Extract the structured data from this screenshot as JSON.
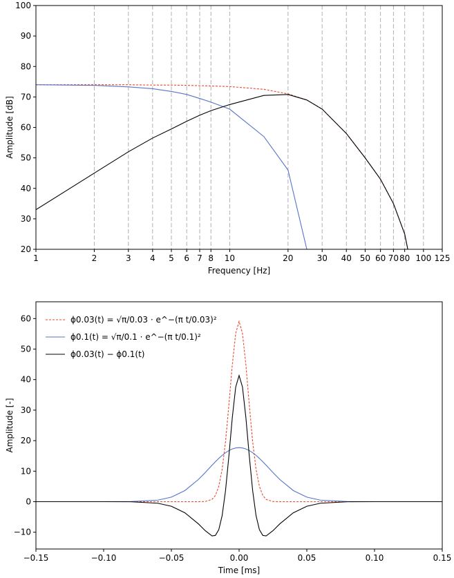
{
  "chart_data": [
    {
      "type": "line",
      "xscale": "log",
      "grid": "x",
      "xlabel": "Frequency [Hz]",
      "ylabel": "Amplitude [dB]",
      "xlim": [
        1,
        125
      ],
      "ylim": [
        20,
        100
      ],
      "xticks": [
        1,
        2,
        3,
        4,
        5,
        6,
        7,
        8,
        10,
        20,
        30,
        40,
        50,
        60,
        70,
        80,
        100,
        125
      ],
      "yticks": [
        20,
        30,
        40,
        50,
        60,
        70,
        80,
        90,
        100
      ],
      "x": [
        1,
        2,
        3,
        4,
        5,
        6,
        7,
        8,
        10,
        15,
        20,
        25,
        30,
        40,
        50,
        60,
        70,
        80,
        83
      ],
      "series": [
        {
          "color": "#e8492a",
          "linestyle": "dashed",
          "values": [
            74,
            74,
            74,
            73.9,
            73.9,
            73.8,
            73.7,
            73.6,
            73.4,
            72.5,
            71,
            69,
            66,
            58,
            50,
            43,
            35,
            25,
            20
          ]
        },
        {
          "color": "#5573c8",
          "linestyle": "solid",
          "values": [
            74,
            73.8,
            73.3,
            72.7,
            71.8,
            70.8,
            69.5,
            68.3,
            66,
            57,
            46,
            20,
            null,
            null,
            null,
            null,
            null,
            null,
            null
          ]
        },
        {
          "color": "#000000",
          "linestyle": "solid",
          "values": [
            33,
            45,
            52,
            56.5,
            59.5,
            62,
            64,
            65.5,
            67.5,
            70.5,
            70.8,
            69,
            66,
            58,
            50,
            43,
            35,
            25,
            20
          ]
        }
      ]
    },
    {
      "type": "line",
      "legend": "upper left",
      "xlabel": "Time [ms]",
      "ylabel": "Amplitude [-]",
      "xlim": [
        -0.15,
        0.15
      ],
      "ylim": [
        -15.5,
        65.5
      ],
      "xticks": [
        {
          "value": -0.15,
          "label": "−0.15"
        },
        {
          "value": -0.1,
          "label": "−0.10"
        },
        {
          "value": -0.05,
          "label": "−0.05"
        },
        {
          "value": 0,
          "label": "0.00"
        },
        {
          "value": 0.05,
          "label": "0.05"
        },
        {
          "value": 0.1,
          "label": "0.10"
        },
        {
          "value": 0.15,
          "label": "0.15"
        }
      ],
      "yticks": [
        {
          "value": -10,
          "label": "−10"
        },
        0,
        10,
        20,
        30,
        40,
        50,
        60
      ],
      "x": [
        -0.15,
        -0.1,
        -0.08,
        -0.06,
        -0.05,
        -0.04,
        -0.03,
        -0.025,
        -0.02,
        -0.0175,
        -0.015,
        -0.0125,
        -0.01,
        -0.0075,
        -0.005,
        -0.0025,
        0,
        0.0025,
        0.005,
        0.0075,
        0.01,
        0.0125,
        0.015,
        0.0175,
        0.02,
        0.025,
        0.03,
        0.04,
        0.05,
        0.06,
        0.08,
        0.1,
        0.15
      ],
      "series": [
        {
          "name": "ϕ0.03(t) = √π/0.03 · e^−(π t/0.03)²",
          "color": "#e8492a",
          "linestyle": "dashed",
          "values": [
            0,
            0,
            0,
            0,
            0,
            0,
            0,
            0.06,
            0.74,
            2.05,
            5.01,
            10.65,
            19.73,
            31.88,
            44.91,
            55.17,
            59.08,
            55.17,
            44.91,
            31.88,
            19.73,
            10.65,
            5.01,
            2.05,
            0.74,
            0.06,
            0,
            0,
            0,
            0,
            0,
            0,
            0
          ]
        },
        {
          "name": "ϕ0.1(t) = √π/0.1 · e^−(π t/0.1)²",
          "color": "#5573c8",
          "linestyle": "solid",
          "values": [
            0,
            0,
            0.03,
            0.51,
            1.5,
            3.65,
            7.29,
            9.56,
            11.94,
            13.1,
            14.19,
            15.19,
            16.05,
            16.76,
            17.29,
            17.61,
            17.72,
            17.61,
            17.29,
            16.76,
            16.05,
            15.19,
            14.19,
            13.1,
            11.94,
            9.56,
            7.29,
            3.65,
            1.5,
            0.51,
            0.03,
            0,
            0
          ]
        },
        {
          "name": "ϕ0.03(t) − ϕ0.1(t)",
          "color": "#000000",
          "linestyle": "solid",
          "values": [
            0,
            0,
            -0.03,
            -0.51,
            -1.5,
            -3.65,
            -7.29,
            -9.5,
            -11.2,
            -11.05,
            -9.18,
            -4.54,
            3.68,
            15.12,
            27.62,
            37.56,
            41.36,
            37.56,
            27.62,
            15.12,
            3.68,
            -4.54,
            -9.18,
            -11.05,
            -11.2,
            -9.5,
            -7.29,
            -3.65,
            -1.5,
            -0.51,
            -0.03,
            0,
            0
          ]
        }
      ]
    }
  ]
}
